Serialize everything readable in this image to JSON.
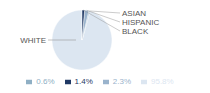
{
  "chart_data": {
    "type": "pie",
    "categories": [
      "WHITE",
      "ASIAN",
      "HISPANIC",
      "BLACK"
    ],
    "values": [
      95.8,
      0.6,
      2.3,
      1.4
    ],
    "value_labels": [
      "95.8%",
      "0.6%",
      "2.3%",
      "1.4%"
    ],
    "colors": [
      "#dce6f1",
      "#8fafc4",
      "#9ab3cc",
      "#1f3864"
    ]
  }
}
